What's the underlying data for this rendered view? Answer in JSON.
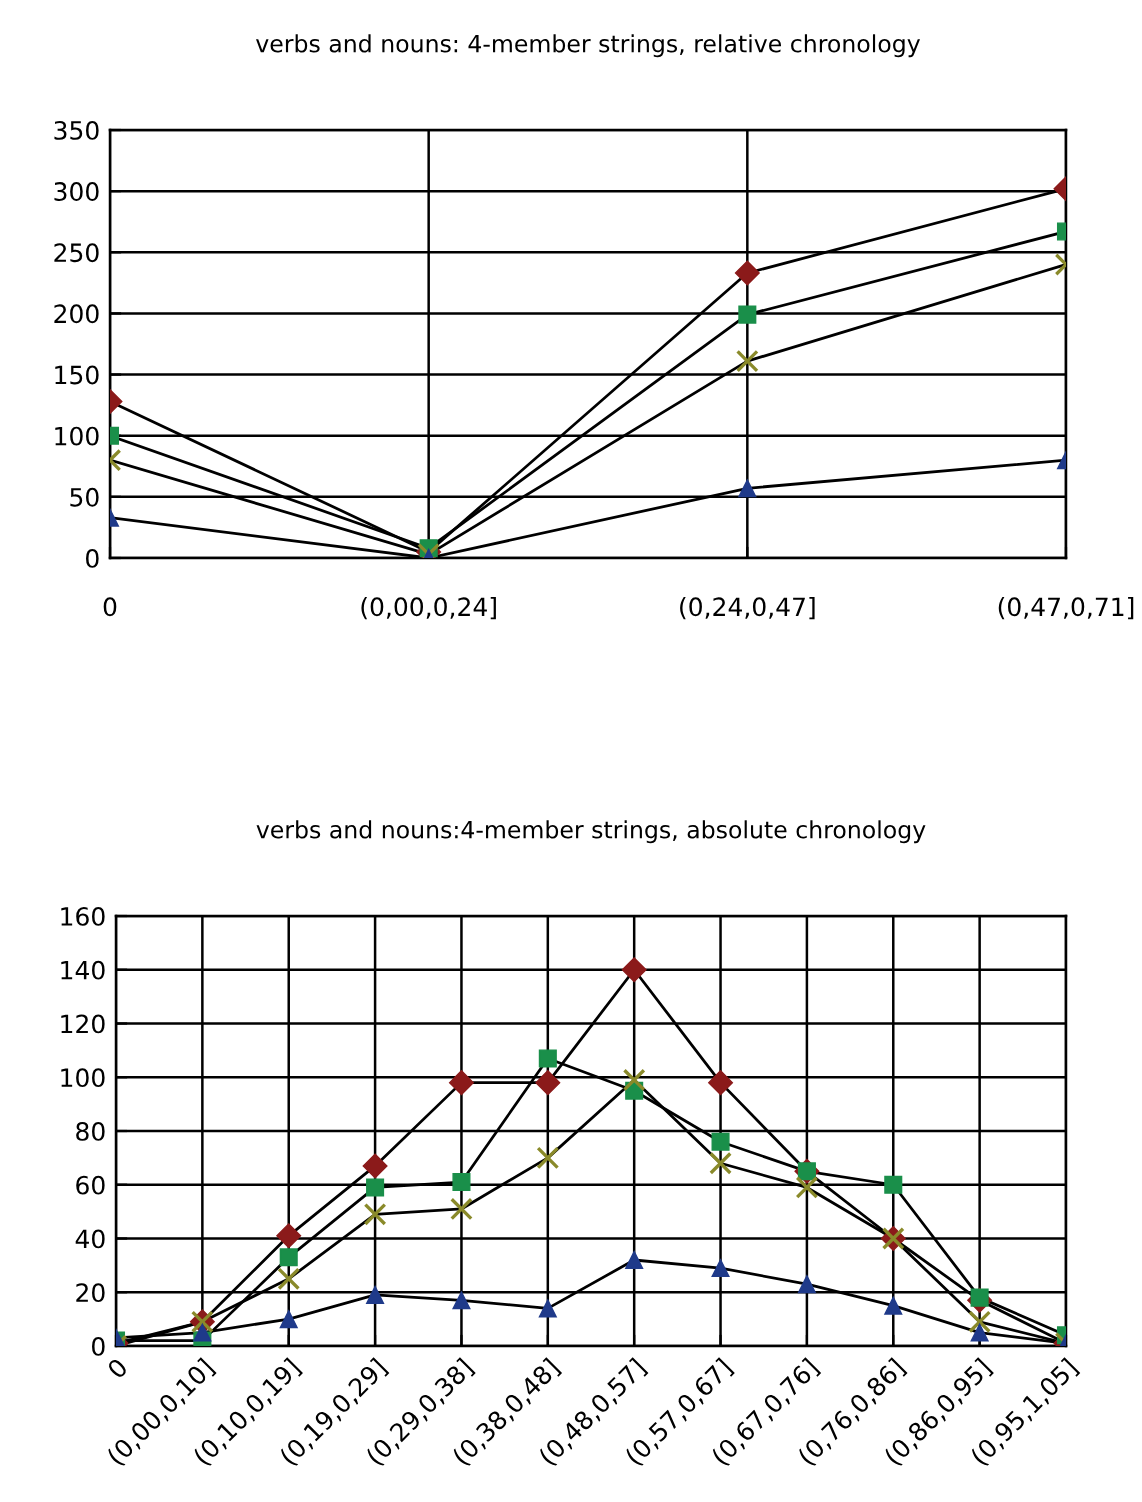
{
  "chart_data": [
    {
      "type": "line",
      "title": "verbs and nouns: 4-member strings, relative chronology",
      "categories": [
        "0",
        "(0,00,0,24]",
        "(0,24,0,47]",
        "(0,47,0,71]"
      ],
      "series": [
        {
          "color": "#8b1a1a",
          "marker": "diamond",
          "values": [
            128,
            5,
            233,
            302
          ]
        },
        {
          "color": "#1a8f4a",
          "marker": "square",
          "values": [
            100,
            8,
            199,
            267
          ]
        },
        {
          "color": "#8a8a2a",
          "marker": "cross",
          "values": [
            80,
            3,
            161,
            240
          ]
        },
        {
          "color": "#1f3a8a",
          "marker": "triangle",
          "values": [
            33,
            0,
            57,
            80
          ]
        }
      ],
      "ylim": [
        0,
        350
      ],
      "yticks": [
        0,
        50,
        100,
        150,
        200,
        250,
        300,
        350
      ],
      "grid": true,
      "legend": false
    },
    {
      "type": "line",
      "title": "verbs and nouns:4-member strings, absolute chronology",
      "categories": [
        "0",
        "(0,00,0,10]",
        "(0,10,0,19]",
        "(0,19,0,29]",
        "(0,29,0,38]",
        "(0,38,0,48]",
        "(0,48,0,57]",
        "(0,57,0,67]",
        "(0,67,0,76]",
        "(0,76,0,86]",
        "(0,86,0,95]",
        "(0,95,1,05]"
      ],
      "series": [
        {
          "color": "#8b1a1a",
          "marker": "diamond",
          "values": [
            1,
            9,
            41,
            67,
            98,
            98,
            140,
            98,
            65,
            40,
            17,
            1
          ]
        },
        {
          "color": "#1a8f4a",
          "marker": "square",
          "values": [
            2,
            2,
            33,
            59,
            61,
            107,
            95,
            76,
            65,
            60,
            18,
            4
          ]
        },
        {
          "color": "#8a8a2a",
          "marker": "cross",
          "values": [
            0,
            9,
            25,
            49,
            51,
            70,
            99,
            68,
            59,
            40,
            9,
            1
          ]
        },
        {
          "color": "#1f3a8a",
          "marker": "triangle",
          "values": [
            3,
            5,
            10,
            19,
            17,
            14,
            32,
            29,
            23,
            15,
            5,
            1
          ]
        }
      ],
      "ylim": [
        0,
        160
      ],
      "yticks": [
        0,
        20,
        40,
        60,
        80,
        100,
        120,
        140,
        160
      ],
      "grid": true,
      "legend": false
    }
  ]
}
